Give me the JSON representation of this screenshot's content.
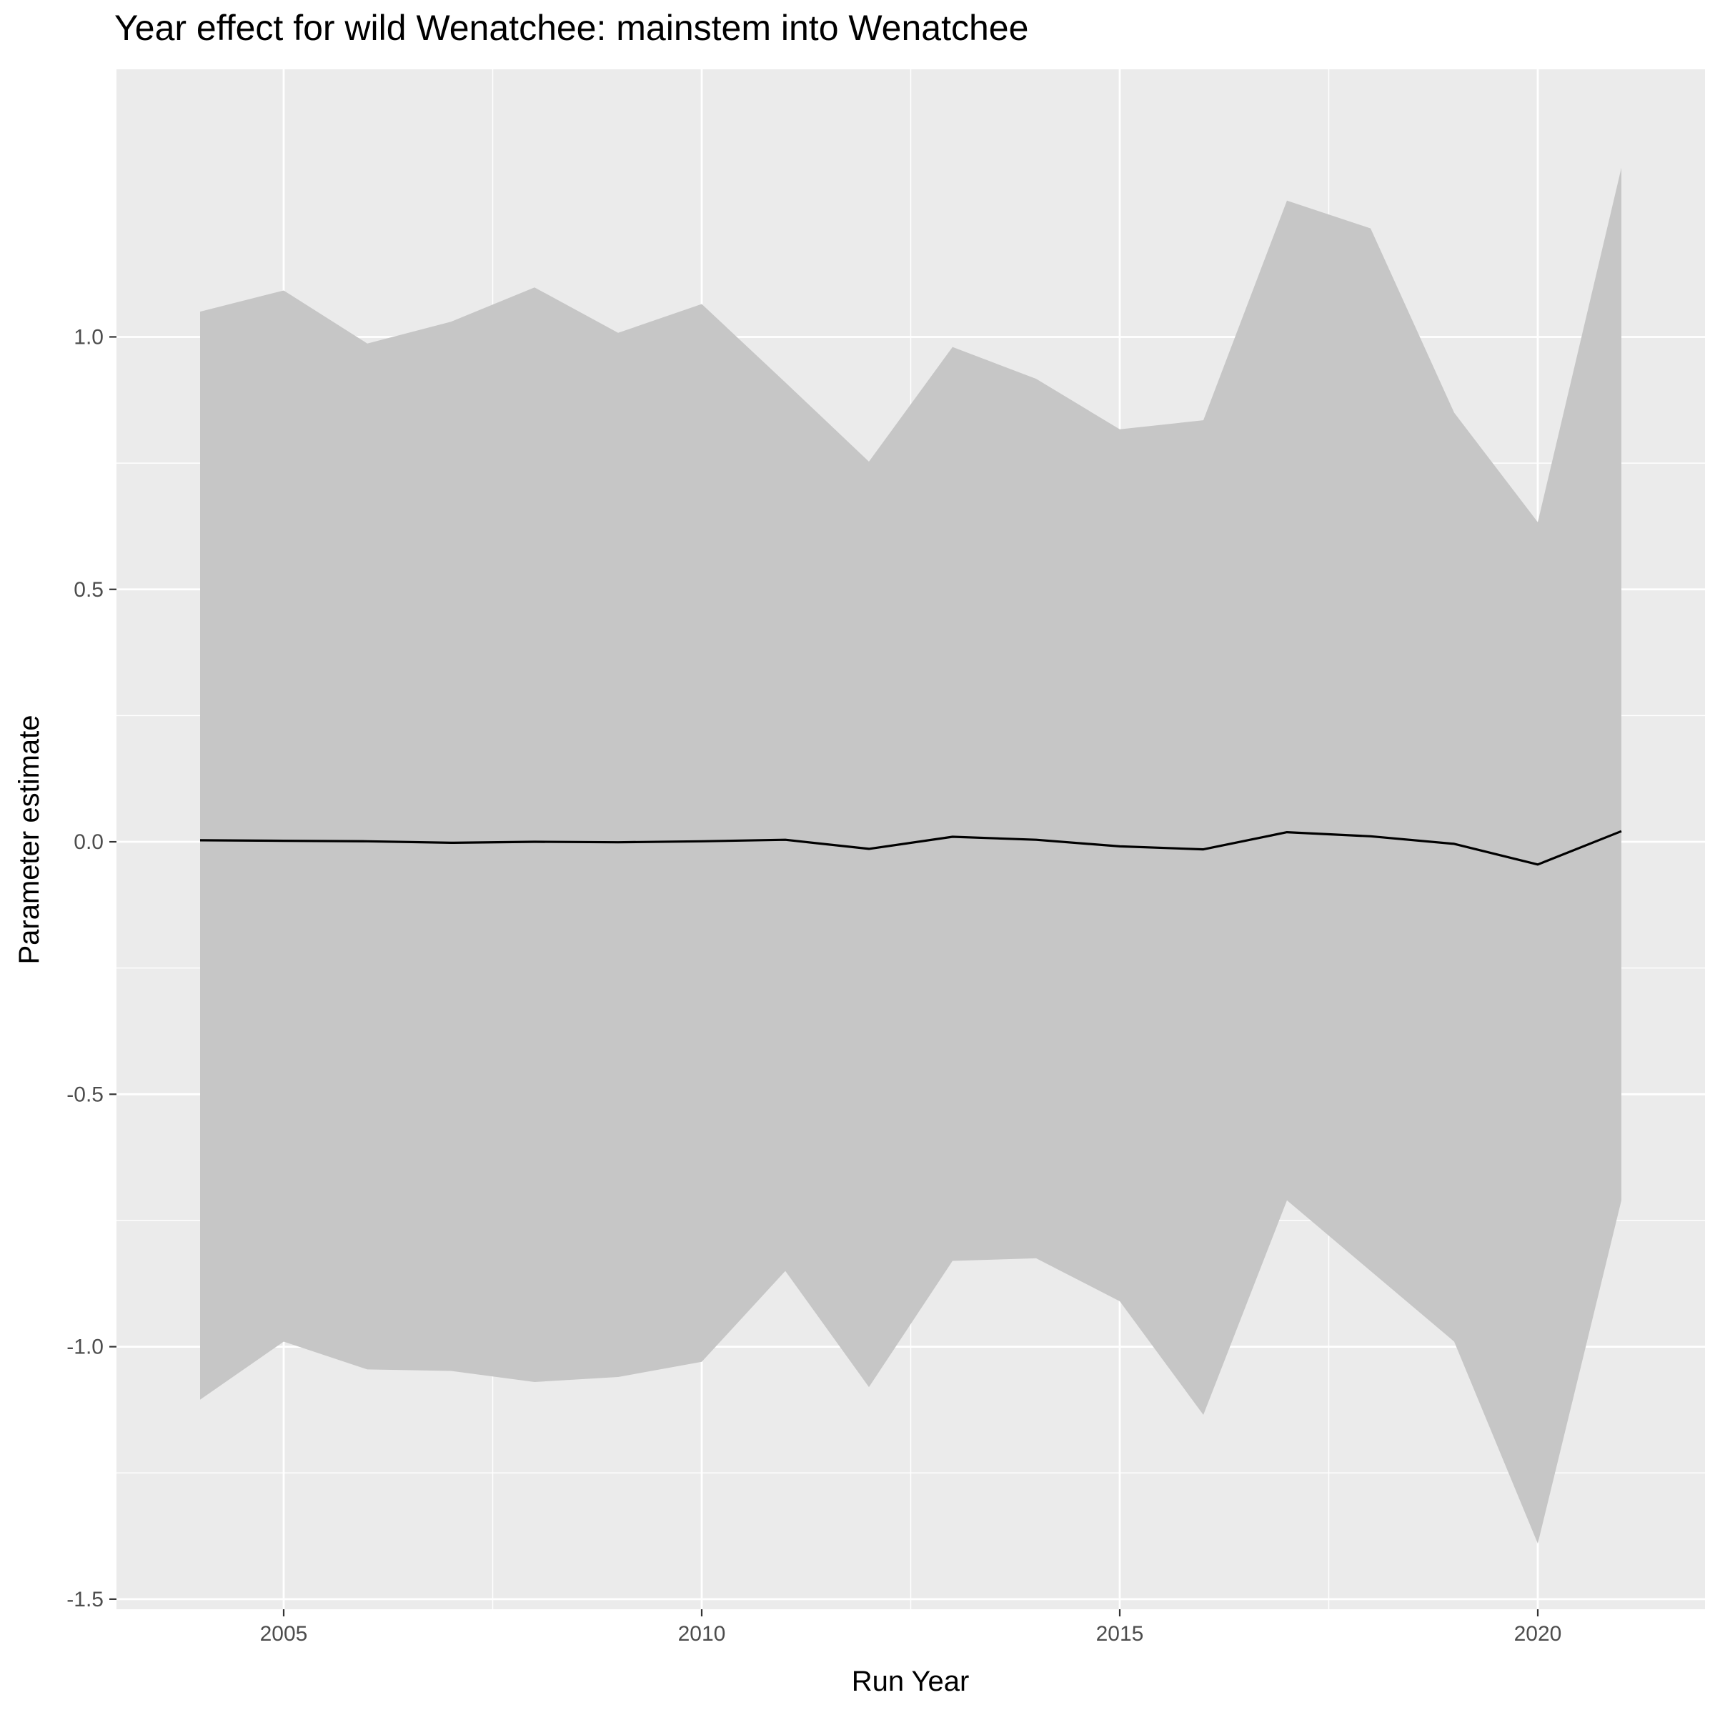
{
  "chart_data": {
    "type": "line",
    "title": "Year effect for wild Wenatchee: mainstem into Wenatchee",
    "xlabel": "Run Year",
    "ylabel": "Parameter estimate",
    "xlim": [
      2003,
      2022
    ],
    "ylim": [
      -1.52,
      1.53
    ],
    "x_ticks": [
      2005,
      2010,
      2015,
      2020
    ],
    "x_tick_labels": [
      "2005",
      "2010",
      "2015",
      "2020"
    ],
    "y_ticks": [
      -1.5,
      -1.0,
      -0.5,
      0.0,
      0.5,
      1.0
    ],
    "y_tick_labels": [
      "-1.5",
      "-1.0",
      "-0.5",
      "0.0",
      "0.5",
      "1.0"
    ],
    "grid": true,
    "legend": "none",
    "colors": {
      "panel_background": "#ebebeb",
      "grid_major": "#ffffff",
      "ribbon": "#c6c6c6",
      "line": "#000000",
      "tick_text": "#4d4d4d"
    },
    "x": [
      2004,
      2005,
      2006,
      2007,
      2008,
      2009,
      2010,
      2011,
      2012,
      2013,
      2014,
      2015,
      2016,
      2017,
      2018,
      2019,
      2020,
      2021
    ],
    "series": [
      {
        "values": [
          0.003,
          0.002,
          0.001,
          -0.002,
          0.0,
          -0.001,
          0.001,
          0.004,
          -0.014,
          0.01,
          0.004,
          -0.009,
          -0.015,
          0.019,
          0.011,
          -0.004,
          -0.045,
          0.021
        ],
        "lower": [
          -1.105,
          -0.99,
          -1.045,
          -1.048,
          -1.07,
          -1.06,
          -1.03,
          -0.85,
          -1.08,
          -0.83,
          -0.825,
          -0.91,
          -1.135,
          -0.71,
          -0.85,
          -0.99,
          -1.39,
          -0.71
        ],
        "upper": [
          1.05,
          1.092,
          0.987,
          1.03,
          1.098,
          1.008,
          1.065,
          0.91,
          0.753,
          0.98,
          0.917,
          0.817,
          0.835,
          1.27,
          1.215,
          0.85,
          0.633,
          1.335
        ]
      }
    ]
  }
}
